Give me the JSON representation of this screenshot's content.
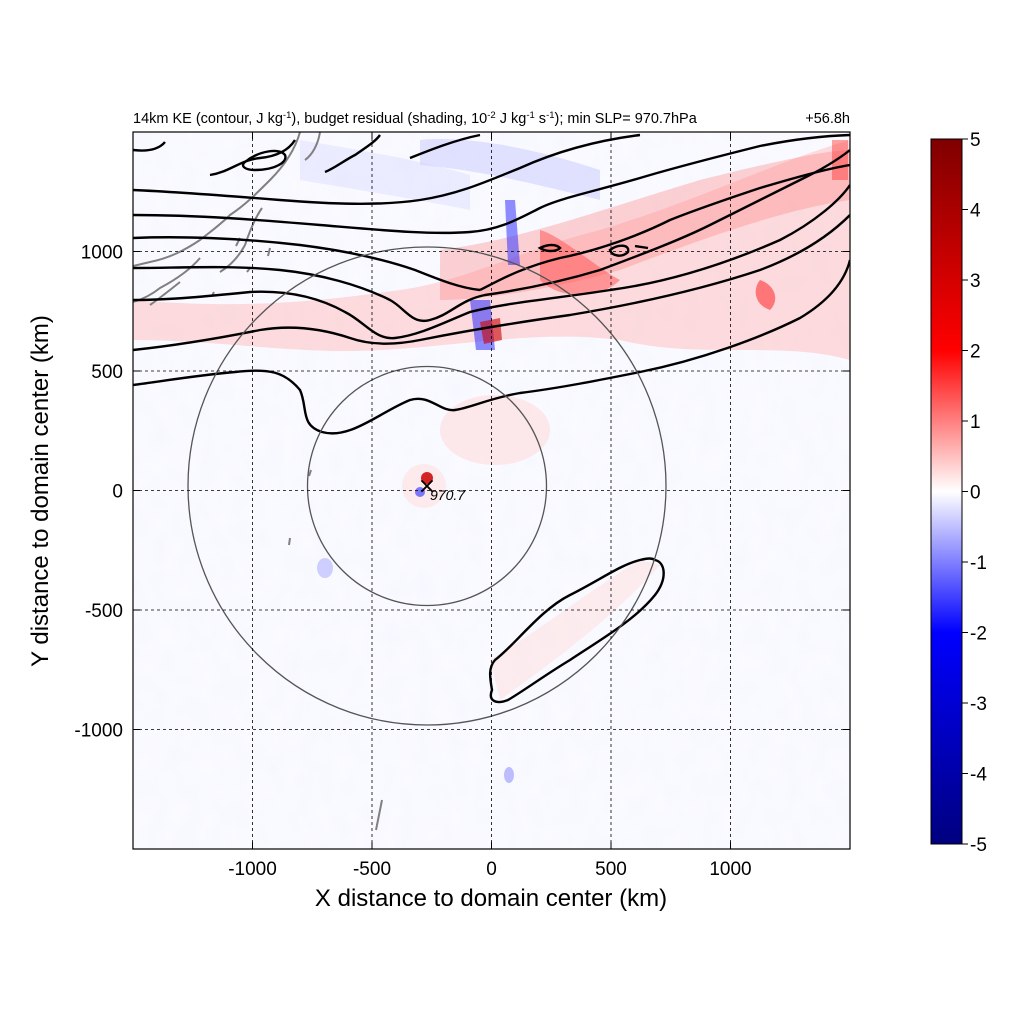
{
  "chart_data": {
    "type": "heatmap",
    "title": {
      "left_parts": [
        "14km KE (contour, J kg",
        "-1",
        "), budget residual (shading, 10",
        "-2",
        " J kg",
        "-1",
        " s",
        "-1",
        "); min SLP= 970.7hPa"
      ],
      "right": "+56.8h"
    },
    "xlabel": "X distance to domain center (km)",
    "ylabel": "Y distance to domain center (km)",
    "xlim": [
      -1500,
      1500
    ],
    "ylim": [
      -1500,
      1500
    ],
    "xticks": [
      -1000,
      -500,
      0,
      500,
      1000
    ],
    "yticks": [
      -1000,
      -500,
      0,
      500,
      1000
    ],
    "grid": "dashed",
    "colorbar": {
      "min": -5,
      "max": 5,
      "ticks": [
        5,
        4,
        3,
        2,
        1,
        0,
        -1,
        -2,
        -3,
        -4,
        -5
      ],
      "colors": [
        "#00007f",
        "#0000ff",
        "#ffffff",
        "#ff0000",
        "#7f0000"
      ]
    },
    "storm_center": {
      "x": -270,
      "y": 20,
      "marker": "×",
      "label": "970.7"
    },
    "radius_circles_km": [
      500,
      1000
    ],
    "colors": {
      "contour": "#000000",
      "coastline": "#808080",
      "circle": "#555555",
      "positive": "#ff0000",
      "negative": "#0000ff"
    }
  }
}
